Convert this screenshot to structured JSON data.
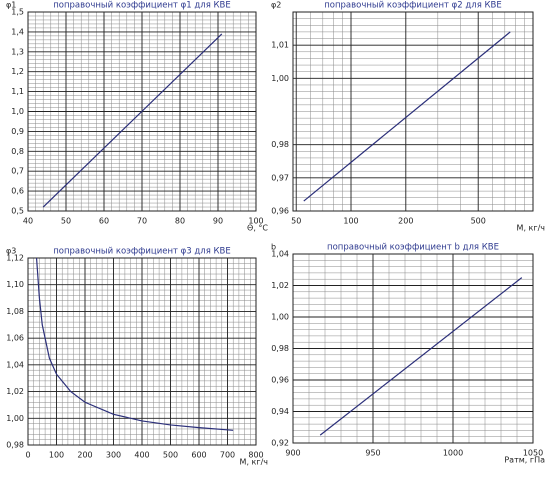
{
  "chart_data": [
    {
      "type": "line",
      "title": "поправочный коэффициент φ1 для КВЕ",
      "y_label": "φ1",
      "x_label": "Θ, °C",
      "x": [
        44,
        91
      ],
      "values": [
        0.52,
        1.39
      ],
      "color": "#2b2f7a",
      "xlim": [
        40,
        100
      ],
      "xticks": [
        40,
        50,
        60,
        70,
        80,
        90,
        100
      ],
      "ylim": [
        0.5,
        1.5
      ],
      "yticks": [
        {
          "value": 0.5,
          "label": "0,5"
        },
        {
          "value": 0.6,
          "label": "0,6"
        },
        {
          "value": 0.7,
          "label": "0,7"
        },
        {
          "value": 0.8,
          "label": "0,8"
        },
        {
          "value": 0.9,
          "label": "0,9"
        },
        {
          "value": 1.0,
          "label": "1,0"
        },
        {
          "value": 1.1,
          "label": "1,1"
        },
        {
          "value": 1.2,
          "label": "1,2"
        },
        {
          "value": 1.3,
          "label": "1,3"
        },
        {
          "value": 1.4,
          "label": "1,4"
        },
        {
          "value": 1.5,
          "label": "1,5"
        }
      ],
      "grid": true,
      "minor_grid": 5
    },
    {
      "type": "line",
      "title": "поправочный коэффициент φ2 для КВЕ",
      "y_label": "φ2",
      "x_label": "M, кг/ч",
      "x": [
        55,
        750
      ],
      "values": [
        0.963,
        1.014
      ],
      "color": "#2b2f7a",
      "xlog": true,
      "xlim": [
        48,
        1000
      ],
      "xticks": [
        50,
        100,
        200,
        500
      ],
      "ylim": [
        0.96,
        1.02
      ],
      "yticks": [
        {
          "value": 0.96,
          "label": "0,96"
        },
        {
          "value": 0.97,
          "label": "0,97"
        },
        {
          "value": 0.98,
          "label": "0,98"
        },
        {
          "value": 1.0,
          "label": "1,00"
        },
        {
          "value": 1.01,
          "label": "1,01"
        }
      ],
      "grid": true,
      "minor_grid": 5
    },
    {
      "type": "line",
      "title": "поправочный коэффициент φ3 для КВЕ",
      "y_label": "φ3",
      "x_label": "M, кг/ч",
      "x": [
        30,
        40,
        50,
        75,
        100,
        150,
        200,
        300,
        400,
        500,
        600,
        720
      ],
      "values": [
        1.12,
        1.09,
        1.07,
        1.045,
        1.033,
        1.02,
        1.012,
        1.003,
        0.998,
        0.995,
        0.993,
        0.991
      ],
      "color": "#2b2f7a",
      "xlim": [
        0,
        800
      ],
      "xticks": [
        0,
        100,
        200,
        300,
        400,
        500,
        600,
        700,
        800
      ],
      "ylim": [
        0.98,
        1.12
      ],
      "yticks": [
        {
          "value": 0.98,
          "label": "0,98"
        },
        {
          "value": 1.0,
          "label": "1,00"
        },
        {
          "value": 1.02,
          "label": "1,02"
        },
        {
          "value": 1.04,
          "label": "1,04"
        },
        {
          "value": 1.06,
          "label": "1,06"
        },
        {
          "value": 1.08,
          "label": "1,08"
        },
        {
          "value": 1.1,
          "label": "1,10"
        },
        {
          "value": 1.12,
          "label": "1,12"
        }
      ],
      "grid": true,
      "minor_grid": 5
    },
    {
      "type": "line",
      "title": "поправочный коэффициент b для КВЕ",
      "y_label": "b",
      "x_label": "Pатм, гПа",
      "x": [
        917,
        1043
      ],
      "values": [
        0.925,
        1.025
      ],
      "color": "#2b2f7a",
      "xlim": [
        900,
        1050
      ],
      "xticks": [
        900,
        950,
        1000,
        1050
      ],
      "ylim": [
        0.92,
        1.04
      ],
      "yticks": [
        {
          "value": 0.92,
          "label": "0,92"
        },
        {
          "value": 0.94,
          "label": "0,94"
        },
        {
          "value": 0.96,
          "label": "0,96"
        },
        {
          "value": 0.98,
          "label": "0,98"
        },
        {
          "value": 1.0,
          "label": "1,00"
        },
        {
          "value": 1.02,
          "label": "1,02"
        },
        {
          "value": 1.04,
          "label": "1,04"
        }
      ],
      "grid": true,
      "minor_grid": 5
    }
  ]
}
